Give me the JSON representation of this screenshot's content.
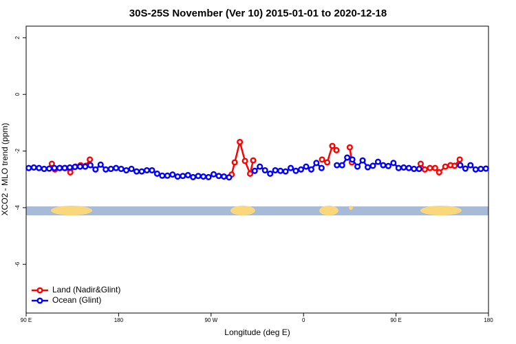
{
  "chart_data": {
    "type": "line",
    "title": "30S-25S November (Ver 10)   2015-01-01 to 2020-12-18",
    "x_label": "Longitude (deg E)",
    "y_label": "XCO2 - MLO trend (ppm)",
    "xlim": [
      90,
      540
    ],
    "xticks": [
      {
        "value": 90,
        "label": "90 E"
      },
      180,
      {
        "value": 270,
        "label": "90 W"
      },
      {
        "value": 360,
        "label": "0"
      },
      {
        "value": 450,
        "label": "90 E"
      },
      {
        "value": 540,
        "label": "180"
      }
    ],
    "ylim": [
      -7.72,
      2.41
    ],
    "yticks": [
      2,
      0,
      -2,
      -4,
      -6
    ],
    "legend": "bottom-left",
    "series": [
      {
        "name": "Land (Nadir&Glint)",
        "color": "#ff0000",
        "x": [
          115,
          118,
          123,
          128,
          133,
          138,
          143,
          148,
          152,
          220,
          290,
          293,
          298,
          303,
          308,
          311,
          350,
          378,
          383,
          388,
          392,
          400,
          405,
          407,
          440,
          474,
          478,
          483,
          488,
          492,
          498,
          503,
          507,
          512
        ],
        "values": [
          -2.45,
          -2.65,
          -2.6,
          -2.6,
          -2.75,
          -2.55,
          -2.5,
          -2.52,
          -2.3,
          null,
          -2.83,
          -2.4,
          -1.68,
          -2.35,
          -2.8,
          -2.33,
          null,
          -2.3,
          -2.4,
          -1.82,
          -1.97,
          null,
          -1.87,
          -2.4,
          null,
          -2.45,
          -2.65,
          -2.6,
          -2.6,
          -2.75,
          -2.55,
          -2.5,
          -2.52,
          -2.3
        ]
      },
      {
        "name": "Ocean (Glint)",
        "color": "#0000ff",
        "x": [
          92.5,
          97.5,
          102.5,
          107.5,
          112.5,
          117.5,
          122.5,
          127.5,
          132.5,
          137.5,
          142.5,
          147.5,
          152.5,
          157.5,
          162.5,
          167.5,
          172.5,
          177.5,
          182.5,
          187.5,
          192.5,
          197.5,
          202.5,
          207.5,
          212.5,
          217.5,
          222.5,
          227.5,
          232.5,
          237.5,
          242.5,
          247.5,
          252.5,
          257.5,
          262.5,
          267.5,
          272.5,
          277.5,
          282.5,
          287.5,
          292.5,
          297.5,
          302.5,
          307.5,
          312.5,
          317.5,
          322.5,
          327.5,
          332.5,
          337.5,
          342.5,
          347.5,
          352.5,
          357.5,
          362.5,
          367.5,
          372.5,
          377.5,
          382.5,
          387.5,
          392.5,
          397.5,
          402.5,
          407.5,
          412.5,
          417.5,
          422.5,
          427.5,
          432.5,
          437.5,
          442.5,
          447.5,
          452.5,
          457.5,
          462.5,
          467.5,
          472.5,
          477.5,
          482.5,
          487.5,
          492.5,
          497.5,
          502.5,
          507.5,
          512.5,
          517.5,
          522.5,
          527.5,
          532.5,
          537.5
        ],
        "values": [
          -2.6,
          -2.58,
          -2.6,
          -2.63,
          -2.62,
          -2.6,
          -2.6,
          -2.6,
          -2.58,
          -2.56,
          -2.55,
          -2.55,
          -2.5,
          -2.65,
          -2.48,
          -2.65,
          -2.63,
          -2.6,
          -2.63,
          -2.68,
          -2.63,
          -2.72,
          -2.72,
          -2.68,
          -2.68,
          -2.8,
          -2.87,
          -2.87,
          -2.83,
          -2.9,
          -2.88,
          -2.85,
          -2.92,
          -2.88,
          -2.9,
          -2.92,
          -2.82,
          -2.88,
          -2.9,
          -2.93,
          null,
          null,
          null,
          null,
          -2.7,
          -2.55,
          -2.68,
          -2.8,
          -2.68,
          -2.7,
          -2.72,
          -2.6,
          -2.7,
          -2.65,
          -2.55,
          -2.65,
          -2.42,
          -2.6,
          null,
          null,
          -2.5,
          -2.5,
          -2.23,
          -2.3,
          -2.55,
          -2.33,
          -2.57,
          -2.52,
          -2.38,
          -2.5,
          -2.53,
          -2.42,
          -2.6,
          -2.58,
          -2.6,
          -2.63,
          -2.63,
          null,
          null,
          null,
          null,
          null,
          null,
          null,
          -2.5,
          -2.62,
          -2.5,
          -2.65,
          -2.63,
          -2.62
        ]
      }
    ]
  }
}
